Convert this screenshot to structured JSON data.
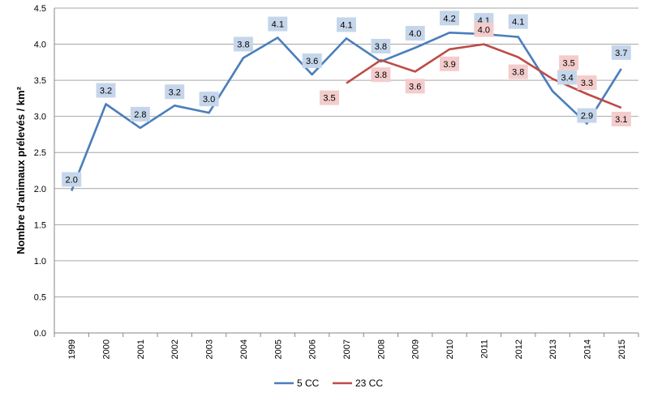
{
  "chart_data": {
    "type": "line",
    "ylabel": "Nombre d'animaux prélevés / km²",
    "xlabel": "",
    "ylim": [
      0,
      4.5
    ],
    "yticks": [
      "0.0",
      "0.5",
      "1.0",
      "1.5",
      "2.0",
      "2.5",
      "3.0",
      "3.5",
      "4.0",
      "4.5"
    ],
    "categories": [
      "1999",
      "2000",
      "2001",
      "2002",
      "2003",
      "2004",
      "2005",
      "2006",
      "2007",
      "2008",
      "2009",
      "2010",
      "2011",
      "2012",
      "2013",
      "2014",
      "2015"
    ],
    "grid": true,
    "legend_position": "bottom",
    "series": [
      {
        "name": "5 CC",
        "color": "#4a7ebb",
        "label_bg": "#c5d6ea",
        "values": [
          1.97,
          3.17,
          2.84,
          3.15,
          3.05,
          3.81,
          4.09,
          3.58,
          4.08,
          3.76,
          3.95,
          4.16,
          4.14,
          4.1,
          3.35,
          2.9,
          3.66
        ],
        "labels": [
          "2.0",
          "3.2",
          "2.8",
          "3.2",
          "3.0",
          "3.8",
          "4.1",
          "3.6",
          "4.1",
          "3.8",
          "4.0",
          "4.2",
          "4.1",
          "4.1",
          "3.4",
          "2.9",
          "3.7"
        ]
      },
      {
        "name": "23 CC",
        "color": "#be4b48",
        "label_bg": "#f4cccc",
        "values": [
          null,
          null,
          null,
          null,
          null,
          null,
          null,
          null,
          3.46,
          3.78,
          3.62,
          3.93,
          4.0,
          3.82,
          3.52,
          3.31,
          3.12
        ],
        "labels": [
          null,
          null,
          null,
          null,
          null,
          null,
          null,
          null,
          "3.5",
          "3.8",
          "3.6",
          "3.9",
          "4.0",
          "3.8",
          "3.5",
          "3.3",
          "3.1"
        ]
      }
    ]
  }
}
